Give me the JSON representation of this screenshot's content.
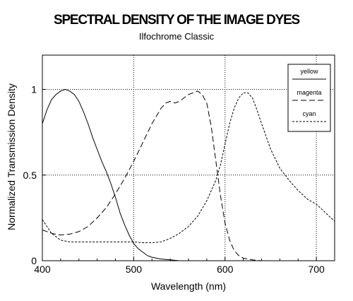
{
  "chart_data": {
    "type": "line",
    "title": "SPECTRAL DENSITY OF THE IMAGE DYES",
    "subtitle": "Ilfochrome Classic",
    "xlabel": "Wavelength (nm)",
    "ylabel": "Normalized Transmission Density",
    "xlim": [
      400,
      720
    ],
    "ylim": [
      0,
      1.2
    ],
    "x_ticks": [
      {
        "value": 400,
        "label": "400"
      },
      {
        "value": 500,
        "label": "500"
      },
      {
        "value": 600,
        "label": "600"
      },
      {
        "value": 700,
        "label": "700"
      }
    ],
    "y_ticks": [
      {
        "value": 0,
        "label": "0"
      },
      {
        "value": 0.5,
        "label": "0.5"
      },
      {
        "value": 1,
        "label": "1"
      }
    ],
    "grid": "dotted lines at x=500,600,700 and y=0.5,1",
    "legend_position": "top-right",
    "series": [
      {
        "name": "yellow",
        "style": "solid",
        "x": [
          400,
          405,
          410,
          415,
          420,
          425,
          430,
          435,
          440,
          445,
          450,
          455,
          460,
          465,
          470,
          475,
          480,
          485,
          490,
          495,
          500,
          505,
          510,
          515,
          520,
          530,
          540,
          550,
          560
        ],
        "y": [
          0.8,
          0.88,
          0.94,
          0.97,
          0.99,
          1.0,
          0.99,
          0.97,
          0.93,
          0.87,
          0.8,
          0.72,
          0.65,
          0.58,
          0.52,
          0.45,
          0.37,
          0.28,
          0.21,
          0.15,
          0.1,
          0.07,
          0.05,
          0.03,
          0.02,
          0.01,
          0.005,
          0.0,
          0.0
        ]
      },
      {
        "name": "magenta",
        "style": "long-dash",
        "x": [
          400,
          410,
          420,
          430,
          440,
          450,
          460,
          470,
          480,
          490,
          500,
          510,
          520,
          530,
          535,
          540,
          545,
          550,
          555,
          560,
          565,
          570,
          575,
          580,
          585,
          590,
          595,
          600,
          605,
          610,
          615,
          620,
          630,
          640,
          650
        ],
        "y": [
          0.18,
          0.16,
          0.15,
          0.155,
          0.17,
          0.2,
          0.25,
          0.31,
          0.39,
          0.48,
          0.58,
          0.69,
          0.8,
          0.89,
          0.92,
          0.93,
          0.92,
          0.93,
          0.95,
          0.97,
          0.98,
          0.99,
          0.97,
          0.92,
          0.78,
          0.58,
          0.38,
          0.22,
          0.12,
          0.06,
          0.03,
          0.015,
          0.005,
          0.0,
          0.0
        ]
      },
      {
        "name": "cyan",
        "style": "short-dash",
        "x": [
          400,
          410,
          420,
          430,
          440,
          450,
          460,
          470,
          480,
          490,
          500,
          510,
          520,
          530,
          540,
          550,
          560,
          570,
          580,
          590,
          595,
          600,
          605,
          610,
          615,
          620,
          625,
          630,
          635,
          640,
          650,
          660,
          670,
          680,
          690,
          700,
          710,
          720
        ],
        "y": [
          0.24,
          0.16,
          0.12,
          0.11,
          0.11,
          0.11,
          0.11,
          0.11,
          0.11,
          0.11,
          0.11,
          0.105,
          0.105,
          0.11,
          0.13,
          0.16,
          0.2,
          0.26,
          0.35,
          0.47,
          0.56,
          0.68,
          0.8,
          0.89,
          0.95,
          0.98,
          0.98,
          0.95,
          0.88,
          0.8,
          0.65,
          0.54,
          0.47,
          0.41,
          0.36,
          0.33,
          0.28,
          0.23
        ]
      }
    ]
  }
}
